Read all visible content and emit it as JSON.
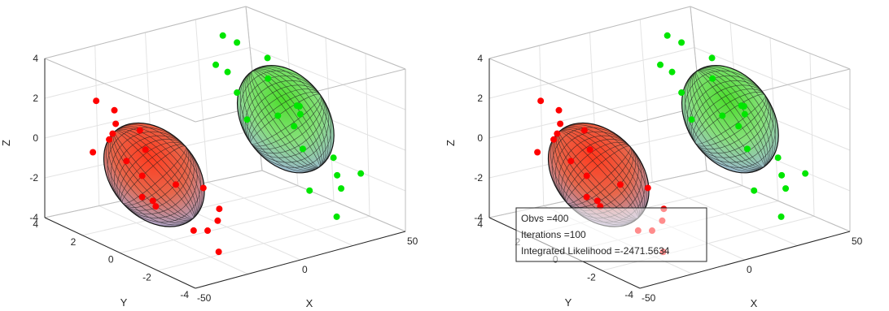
{
  "chart_data": [
    {
      "type": "scatter3d",
      "title": "",
      "xlabel": "X",
      "ylabel": "Y",
      "zlabel": "Z",
      "xlim": [
        -50,
        50
      ],
      "ylim": [
        -4,
        4
      ],
      "zlim": [
        -4,
        4
      ],
      "xticks": [
        "-50",
        "0",
        "50"
      ],
      "yticks": [
        "-4",
        "-2",
        "0",
        "2",
        "4"
      ],
      "zticks": [
        "-4",
        "-2",
        "0",
        "2",
        "4"
      ],
      "grid": true,
      "series": [
        {
          "color": "#ff0000",
          "ellipsoid_gradient": [
            "#ff3b1f",
            "#e8664a",
            "#9fb0e0"
          ],
          "points": [
            [
              -30,
              2.5,
              1.5
            ],
            [
              -40,
              1.5,
              1.0
            ],
            [
              -25,
              3.0,
              0.5
            ],
            [
              -45,
              2.0,
              0.0
            ],
            [
              -20,
              2.0,
              -0.5
            ],
            [
              -35,
              0.5,
              -0.8
            ],
            [
              -28,
              -0.5,
              -1.0
            ],
            [
              -42,
              -1.0,
              -1.5
            ],
            [
              -15,
              -0.5,
              -1.5
            ],
            [
              -33,
              -2.0,
              -2.5
            ],
            [
              -22,
              -1.5,
              -3.0
            ],
            [
              -38,
              1.0,
              -0.2
            ],
            [
              -48,
              0.8,
              1.2
            ],
            [
              -18,
              2.5,
              0.2
            ],
            [
              -26,
              -2.5,
              -2.0
            ],
            [
              -30,
              -3.0,
              -3.2
            ],
            [
              -12,
              -1.0,
              -2.4
            ],
            [
              -36,
              2.8,
              2.0
            ],
            [
              -44,
              -0.5,
              -1.2
            ],
            [
              -24,
              1.2,
              -2.6
            ]
          ]
        },
        {
          "color": "#00e600",
          "ellipsoid_gradient": [
            "#4cdd2c",
            "#86e07a",
            "#9fb0e0"
          ],
          "points": [
            [
              25,
              2.5,
              2.0
            ],
            [
              35,
              3.0,
              3.0
            ],
            [
              20,
              1.5,
              1.5
            ],
            [
              40,
              2.0,
              2.5
            ],
            [
              30,
              0.5,
              0.5
            ],
            [
              45,
              1.0,
              0.0
            ],
            [
              28,
              -1.0,
              -0.5
            ],
            [
              38,
              -1.5,
              -1.0
            ],
            [
              22,
              -2.0,
              -2.0
            ],
            [
              42,
              -2.5,
              -1.5
            ],
            [
              15,
              2.0,
              2.8
            ],
            [
              33,
              3.5,
              3.2
            ],
            [
              48,
              -0.5,
              -2.5
            ],
            [
              26,
              -3.0,
              -3.0
            ],
            [
              36,
              0.0,
              1.0
            ],
            [
              18,
              0.8,
              0.5
            ],
            [
              44,
              2.5,
              1.2
            ],
            [
              30,
              -2.8,
              -1.8
            ],
            [
              46,
              1.5,
              -0.8
            ],
            [
              24,
              -1.2,
              1.8
            ]
          ]
        }
      ]
    },
    {
      "type": "scatter3d",
      "title": "",
      "xlabel": "X",
      "ylabel": "Y",
      "zlabel": "Z",
      "xlim": [
        -50,
        50
      ],
      "ylim": [
        -4,
        4
      ],
      "zlim": [
        -4,
        4
      ],
      "xticks": [
        "-50",
        "0",
        "50"
      ],
      "yticks": [
        "-4",
        "-2",
        "0",
        "2",
        "4"
      ],
      "zticks": [
        "-4",
        "-2",
        "0",
        "2",
        "4"
      ],
      "grid": true,
      "annotation": [
        "Obvs =400",
        "Iterations =100",
        "Integrated Likelihood =-2471.5634"
      ],
      "series": [
        {
          "color": "#ff0000",
          "ellipsoid_gradient": [
            "#ff3b1f",
            "#e8664a",
            "#9fb0e0"
          ],
          "points": [
            [
              -30,
              2.5,
              1.5
            ],
            [
              -40,
              1.5,
              1.0
            ],
            [
              -25,
              3.0,
              0.5
            ],
            [
              -45,
              2.0,
              0.0
            ],
            [
              -20,
              2.0,
              -0.5
            ],
            [
              -35,
              0.5,
              -0.8
            ],
            [
              -28,
              -0.5,
              -1.0
            ],
            [
              -42,
              -1.0,
              -1.5
            ],
            [
              -15,
              -0.5,
              -1.5
            ],
            [
              -33,
              -2.0,
              -2.5
            ],
            [
              -22,
              -1.5,
              -3.0
            ],
            [
              -38,
              1.0,
              -0.2
            ],
            [
              -48,
              0.8,
              1.2
            ],
            [
              -18,
              2.5,
              0.2
            ],
            [
              -26,
              -2.5,
              -2.0
            ],
            [
              -30,
              -3.0,
              -3.2
            ],
            [
              -12,
              -1.0,
              -2.4
            ],
            [
              -36,
              2.8,
              2.0
            ],
            [
              -44,
              -0.5,
              -1.2
            ],
            [
              -24,
              1.2,
              -2.6
            ]
          ]
        },
        {
          "color": "#00e600",
          "ellipsoid_gradient": [
            "#4cdd2c",
            "#86e07a",
            "#9fb0e0"
          ],
          "points": [
            [
              25,
              2.5,
              2.0
            ],
            [
              35,
              3.0,
              3.0
            ],
            [
              20,
              1.5,
              1.5
            ],
            [
              40,
              2.0,
              2.5
            ],
            [
              30,
              0.5,
              0.5
            ],
            [
              45,
              1.0,
              0.0
            ],
            [
              28,
              -1.0,
              -0.5
            ],
            [
              38,
              -1.5,
              -1.0
            ],
            [
              22,
              -2.0,
              -2.0
            ],
            [
              42,
              -2.5,
              -1.5
            ],
            [
              15,
              2.0,
              2.8
            ],
            [
              33,
              3.5,
              3.2
            ],
            [
              48,
              -0.5,
              -2.5
            ],
            [
              26,
              -3.0,
              -3.0
            ],
            [
              36,
              0.0,
              1.0
            ],
            [
              18,
              0.8,
              0.5
            ],
            [
              44,
              2.5,
              1.2
            ],
            [
              30,
              -2.8,
              -1.8
            ],
            [
              46,
              1.5,
              -0.8
            ],
            [
              24,
              -1.2,
              1.8
            ]
          ]
        }
      ]
    }
  ]
}
